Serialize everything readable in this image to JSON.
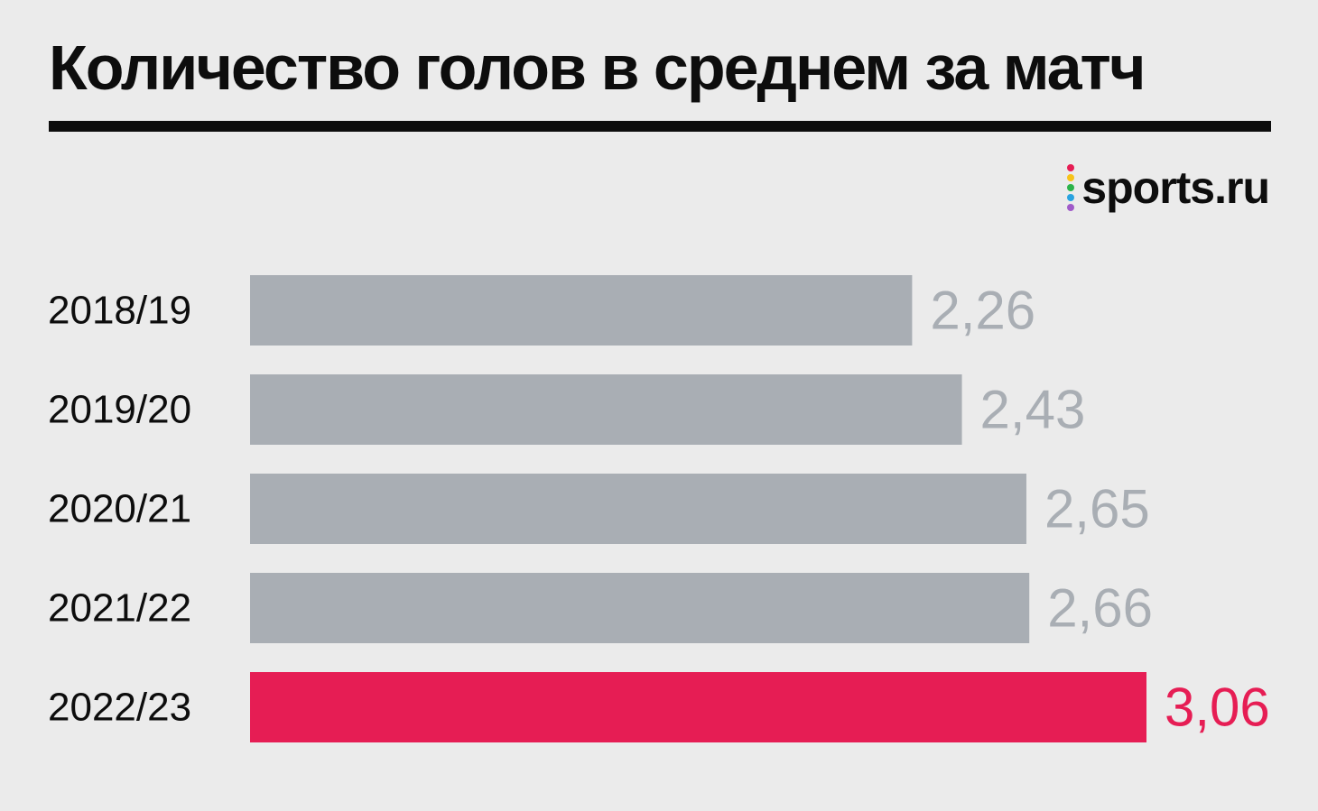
{
  "title": "Количество голов в среднем за матч",
  "logo": {
    "text": "sports.ru",
    "dot_colors": [
      "#e61d54",
      "#f7c31a",
      "#2cb34a",
      "#2aa3e0",
      "#a05bc9"
    ]
  },
  "colors": {
    "background": "#ebebeb",
    "bar_default": "#a9aeb4",
    "bar_highlight": "#e61d54",
    "label_default": "#a9aeb4",
    "label_highlight": "#e61d54",
    "text_dark": "#0d0d0d"
  },
  "chart_data": {
    "type": "bar",
    "orientation": "horizontal",
    "title": "Количество голов в среднем за матч",
    "categories": [
      "2018/19",
      "2019/20",
      "2020/21",
      "2021/22",
      "2022/23"
    ],
    "values": [
      2.26,
      2.43,
      2.65,
      2.66,
      3.06
    ],
    "value_labels": [
      "2,26",
      "2,43",
      "2,65",
      "2,66",
      "3,06"
    ],
    "highlight_index": 4,
    "xlim": [
      0,
      3.06
    ],
    "grid": false,
    "legend": "none"
  }
}
